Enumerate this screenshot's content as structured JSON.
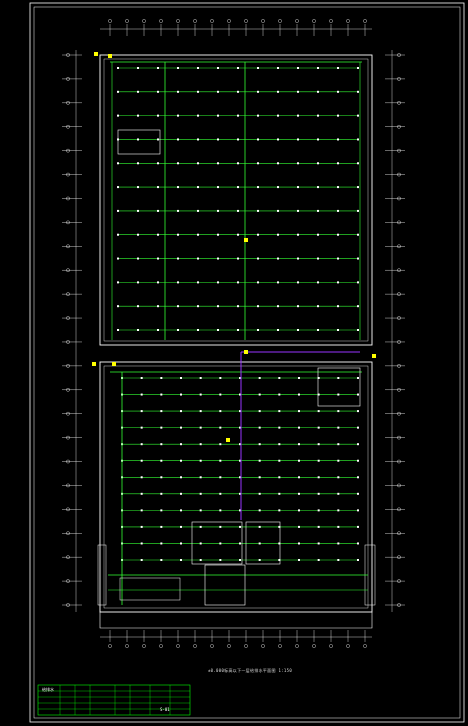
{
  "drawing": {
    "caption": "±0.000标高以下一层给排水平面图 1:150",
    "colors": {
      "background": "#000000",
      "frame": "#ffffff",
      "walls": "#ffffff",
      "pipe": "#33ff33",
      "riser": "#9933ff",
      "valve": "#ffff00",
      "titleblock": "#00ff00"
    },
    "structure": {
      "north_rows": 12,
      "south_rows": 12,
      "columns_top": 16,
      "columns_side": 24
    },
    "titleblock": {
      "sheet_label": "给排水",
      "drawing_no": "S-01"
    }
  }
}
